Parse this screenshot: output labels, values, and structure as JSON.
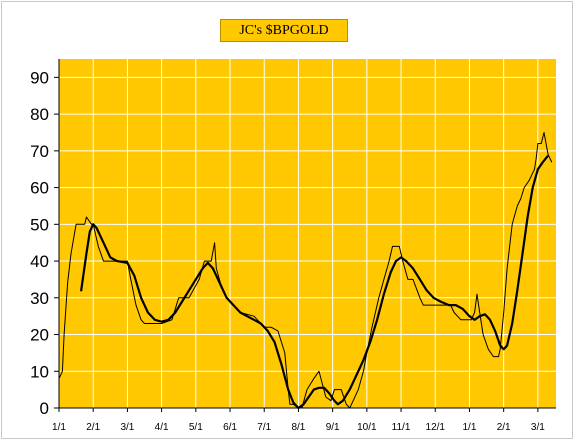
{
  "chart_data": {
    "type": "line",
    "title": "JC's $BPGOLD",
    "xlabel": "",
    "ylabel": "",
    "ylim": [
      0,
      95
    ],
    "yticks": [
      0,
      10,
      20,
      30,
      40,
      50,
      60,
      70,
      80,
      90
    ],
    "x_tick_labels": [
      "1/1",
      "2/1",
      "3/1",
      "4/1",
      "5/1",
      "6/1",
      "7/1",
      "8/1",
      "9/1",
      "10/1",
      "11/1",
      "12/1",
      "1/1",
      "2/1",
      "3/1"
    ],
    "grid": true,
    "legend": "none",
    "colors": {
      "plot_bg": "#ffc800",
      "grid": "#ffffff",
      "line": "#000000",
      "frame": "#c8c8c8"
    },
    "series": [
      {
        "style": "thin-step",
        "points": [
          [
            0.0,
            8
          ],
          [
            0.1,
            10
          ],
          [
            0.15,
            20
          ],
          [
            0.25,
            34
          ],
          [
            0.35,
            42
          ],
          [
            0.5,
            50
          ],
          [
            0.75,
            50
          ],
          [
            0.8,
            52
          ],
          [
            0.95,
            50
          ],
          [
            1.0,
            50
          ],
          [
            1.15,
            44
          ],
          [
            1.3,
            40
          ],
          [
            1.7,
            40
          ],
          [
            2.0,
            40
          ],
          [
            2.1,
            35
          ],
          [
            2.25,
            28
          ],
          [
            2.4,
            24
          ],
          [
            2.5,
            23
          ],
          [
            2.8,
            23
          ],
          [
            3.0,
            23
          ],
          [
            3.3,
            24
          ],
          [
            3.5,
            30
          ],
          [
            3.8,
            30
          ],
          [
            4.1,
            35
          ],
          [
            4.25,
            40
          ],
          [
            4.45,
            40
          ],
          [
            4.55,
            45
          ],
          [
            4.6,
            38
          ],
          [
            4.75,
            33
          ],
          [
            4.9,
            30
          ],
          [
            5.1,
            28
          ],
          [
            5.3,
            26
          ],
          [
            5.7,
            25
          ],
          [
            6.0,
            22
          ],
          [
            6.2,
            22
          ],
          [
            6.4,
            21
          ],
          [
            6.6,
            15
          ],
          [
            6.7,
            5
          ],
          [
            6.75,
            1
          ],
          [
            6.85,
            1
          ],
          [
            7.0,
            0
          ],
          [
            7.1,
            0
          ],
          [
            7.25,
            5
          ],
          [
            7.45,
            8
          ],
          [
            7.6,
            10
          ],
          [
            7.8,
            3
          ],
          [
            7.95,
            2
          ],
          [
            8.05,
            5
          ],
          [
            8.25,
            5
          ],
          [
            8.4,
            1
          ],
          [
            8.5,
            0
          ],
          [
            8.6,
            2
          ],
          [
            8.75,
            5
          ],
          [
            8.9,
            10
          ],
          [
            9.0,
            15
          ],
          [
            9.15,
            22
          ],
          [
            9.35,
            30
          ],
          [
            9.5,
            35
          ],
          [
            9.65,
            40
          ],
          [
            9.75,
            44
          ],
          [
            9.95,
            44
          ],
          [
            10.05,
            40
          ],
          [
            10.2,
            35
          ],
          [
            10.35,
            35
          ],
          [
            10.55,
            30
          ],
          [
            10.65,
            28
          ],
          [
            10.85,
            28
          ],
          [
            11.0,
            28
          ],
          [
            11.2,
            28
          ],
          [
            11.45,
            28
          ],
          [
            11.55,
            26
          ],
          [
            11.75,
            24
          ],
          [
            12.05,
            24
          ],
          [
            12.15,
            26
          ],
          [
            12.22,
            31
          ],
          [
            12.3,
            26
          ],
          [
            12.4,
            20
          ],
          [
            12.55,
            16
          ],
          [
            12.7,
            14
          ],
          [
            12.85,
            14
          ],
          [
            12.9,
            16
          ],
          [
            13.0,
            26
          ],
          [
            13.1,
            38
          ],
          [
            13.25,
            50
          ],
          [
            13.4,
            55
          ],
          [
            13.5,
            57
          ],
          [
            13.6,
            60
          ],
          [
            13.75,
            62
          ],
          [
            13.9,
            65
          ],
          [
            13.95,
            68
          ],
          [
            14.0,
            72
          ],
          [
            14.1,
            72
          ],
          [
            14.18,
            75
          ],
          [
            14.3,
            69
          ],
          [
            14.4,
            67
          ]
        ]
      },
      {
        "style": "thick-smooth",
        "points": [
          [
            0.65,
            32
          ],
          [
            0.8,
            42
          ],
          [
            0.9,
            48
          ],
          [
            1.0,
            50
          ],
          [
            1.1,
            49
          ],
          [
            1.3,
            45
          ],
          [
            1.5,
            41
          ],
          [
            1.7,
            40
          ],
          [
            2.0,
            39.5
          ],
          [
            2.2,
            36
          ],
          [
            2.4,
            30
          ],
          [
            2.6,
            26
          ],
          [
            2.8,
            24
          ],
          [
            3.0,
            23.5
          ],
          [
            3.2,
            24
          ],
          [
            3.4,
            26
          ],
          [
            3.6,
            29
          ],
          [
            3.8,
            32
          ],
          [
            4.0,
            35
          ],
          [
            4.2,
            38
          ],
          [
            4.35,
            39.5
          ],
          [
            4.5,
            38
          ],
          [
            4.7,
            34
          ],
          [
            4.9,
            30
          ],
          [
            5.1,
            28
          ],
          [
            5.3,
            26
          ],
          [
            5.5,
            25
          ],
          [
            5.7,
            24
          ],
          [
            5.9,
            23
          ],
          [
            6.1,
            21
          ],
          [
            6.3,
            18
          ],
          [
            6.5,
            12
          ],
          [
            6.7,
            5
          ],
          [
            6.85,
            1.5
          ],
          [
            7.0,
            0
          ],
          [
            7.15,
            1
          ],
          [
            7.3,
            3
          ],
          [
            7.45,
            5
          ],
          [
            7.6,
            5.5
          ],
          [
            7.75,
            5.5
          ],
          [
            7.9,
            4
          ],
          [
            8.05,
            2
          ],
          [
            8.15,
            1
          ],
          [
            8.3,
            2
          ],
          [
            8.5,
            5
          ],
          [
            8.7,
            9
          ],
          [
            8.9,
            13
          ],
          [
            9.1,
            18
          ],
          [
            9.3,
            24
          ],
          [
            9.5,
            31
          ],
          [
            9.7,
            37
          ],
          [
            9.85,
            40
          ],
          [
            10.0,
            41
          ],
          [
            10.15,
            40
          ],
          [
            10.35,
            38
          ],
          [
            10.55,
            35
          ],
          [
            10.75,
            32
          ],
          [
            10.95,
            30
          ],
          [
            11.15,
            29
          ],
          [
            11.4,
            28
          ],
          [
            11.6,
            28
          ],
          [
            11.8,
            27
          ],
          [
            12.0,
            25
          ],
          [
            12.15,
            24
          ],
          [
            12.3,
            25
          ],
          [
            12.45,
            25.5
          ],
          [
            12.6,
            24
          ],
          [
            12.75,
            21
          ],
          [
            12.9,
            17
          ],
          [
            13.0,
            16
          ],
          [
            13.1,
            17
          ],
          [
            13.25,
            23
          ],
          [
            13.4,
            32
          ],
          [
            13.55,
            42
          ],
          [
            13.7,
            52
          ],
          [
            13.85,
            60
          ],
          [
            14.0,
            65
          ],
          [
            14.15,
            67
          ],
          [
            14.28,
            68.5
          ]
        ]
      }
    ]
  }
}
